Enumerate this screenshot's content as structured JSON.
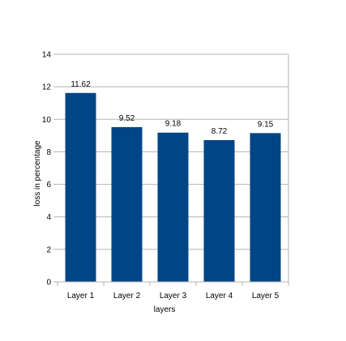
{
  "chart_data": {
    "type": "bar",
    "title": "",
    "xlabel": "layers",
    "ylabel": "loss in percentage",
    "categories": [
      "Layer 1",
      "Layer 2",
      "Layer 3",
      "Layer 4",
      "Layer 5"
    ],
    "values": [
      11.62,
      9.52,
      9.18,
      8.72,
      9.15
    ],
    "data_labels": [
      "11.62",
      "9.52",
      "9.18",
      "8.72",
      "9.15"
    ],
    "ylim": [
      0,
      14
    ],
    "yticks": [
      0,
      2,
      4,
      6,
      8,
      10,
      12,
      14
    ],
    "grid": true,
    "legend": "none",
    "colors": {
      "bar": "#004586",
      "grid": "#b3b3b3",
      "axis": "#b3b3b3"
    }
  }
}
